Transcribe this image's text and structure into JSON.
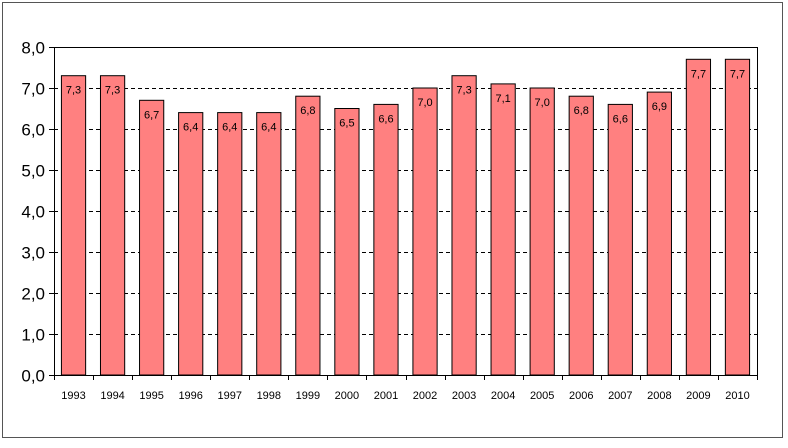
{
  "chart_data": {
    "type": "bar",
    "title": "",
    "xlabel": "",
    "ylabel": "",
    "categories": [
      "1993",
      "1994",
      "1995",
      "1996",
      "1997",
      "1998",
      "1999",
      "2000",
      "2001",
      "2002",
      "2003",
      "2004",
      "2005",
      "2006",
      "2007",
      "2008",
      "2009",
      "2010"
    ],
    "values": [
      7.3,
      7.3,
      6.7,
      6.4,
      6.4,
      6.4,
      6.8,
      6.5,
      6.6,
      7.0,
      7.3,
      7.1,
      7.0,
      6.8,
      6.6,
      6.9,
      7.7,
      7.7
    ],
    "data_labels": [
      "7,3",
      "7,3",
      "6,7",
      "6,4",
      "6,4",
      "6,4",
      "6,8",
      "6,5",
      "6,6",
      "7,0",
      "7,3",
      "7,1",
      "7,0",
      "6,8",
      "6,6",
      "6,9",
      "7,7",
      "7,7"
    ],
    "ylim": [
      0,
      8
    ],
    "yticks": [
      0,
      1,
      2,
      3,
      4,
      5,
      6,
      7,
      8
    ],
    "ytick_labels": [
      "0,0",
      "1,0",
      "2,0",
      "3,0",
      "4,0",
      "5,0",
      "6,0",
      "7,0",
      "8,0"
    ],
    "grid": "horizontal dashed",
    "legend": "none",
    "bar_color": "#ff8080",
    "bar_edge_color": "#000000"
  }
}
